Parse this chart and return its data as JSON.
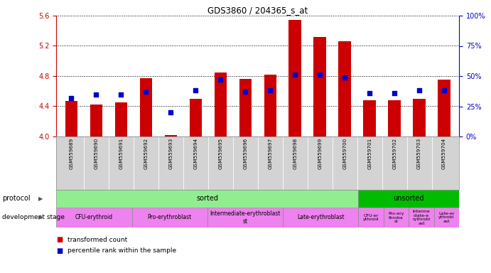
{
  "title": "GDS3860 / 204365_s_at",
  "samples": [
    "GSM559689",
    "GSM559690",
    "GSM559691",
    "GSM559692",
    "GSM559693",
    "GSM559694",
    "GSM559695",
    "GSM559696",
    "GSM559697",
    "GSM559698",
    "GSM559699",
    "GSM559700",
    "GSM559701",
    "GSM559702",
    "GSM559703",
    "GSM559704"
  ],
  "transformed_count": [
    4.47,
    4.42,
    4.45,
    4.77,
    4.02,
    4.5,
    4.85,
    4.76,
    4.82,
    5.54,
    5.32,
    5.26,
    4.48,
    4.48,
    4.5,
    4.75
  ],
  "percentile_rank": [
    32,
    35,
    35,
    37,
    20,
    38,
    47,
    37,
    38,
    51,
    51,
    49,
    36,
    36,
    38,
    38
  ],
  "ylim_left": [
    4.0,
    5.6
  ],
  "ylim_right": [
    0,
    100
  ],
  "yticks_left": [
    4.0,
    4.4,
    4.8,
    5.2,
    5.6
  ],
  "yticks_right": [
    0,
    25,
    50,
    75,
    100
  ],
  "bar_color": "#cc0000",
  "dot_color": "#0000cc",
  "grid_color": "#000000",
  "protocol_sorted_label": "sorted",
  "protocol_unsorted_label": "unsorted",
  "protocol_sorted_color": "#90ee90",
  "protocol_unsorted_color": "#00bb00",
  "dev_stage_color": "#ee82ee",
  "dev_stages": [
    {
      "label": "CFU-erythroid",
      "start": 0,
      "end": 3
    },
    {
      "label": "Pro-erythroblast",
      "start": 3,
      "end": 6
    },
    {
      "label": "Intermediate-erythroblast\nst",
      "start": 6,
      "end": 9
    },
    {
      "label": "Late-erythroblast",
      "start": 9,
      "end": 12
    },
    {
      "label": "CFU-er\nythroid",
      "start": 12,
      "end": 13
    },
    {
      "label": "Pro-ery\nthroba\nst",
      "start": 13,
      "end": 14
    },
    {
      "label": "Interme\ndiate-e\nrythrobl\nast",
      "start": 14,
      "end": 15
    },
    {
      "label": "Late-er\nythrobl\nast",
      "start": 15,
      "end": 16
    }
  ],
  "legend_items": [
    {
      "label": "transformed count",
      "color": "#cc0000"
    },
    {
      "label": "percentile rank within the sample",
      "color": "#0000cc"
    }
  ],
  "tick_label_color_left": "#cc0000",
  "tick_label_color_right": "#0000cc",
  "bar_width": 0.5,
  "dot_size": 18,
  "n_samples": 16,
  "n_sorted": 12,
  "n_unsorted": 4
}
